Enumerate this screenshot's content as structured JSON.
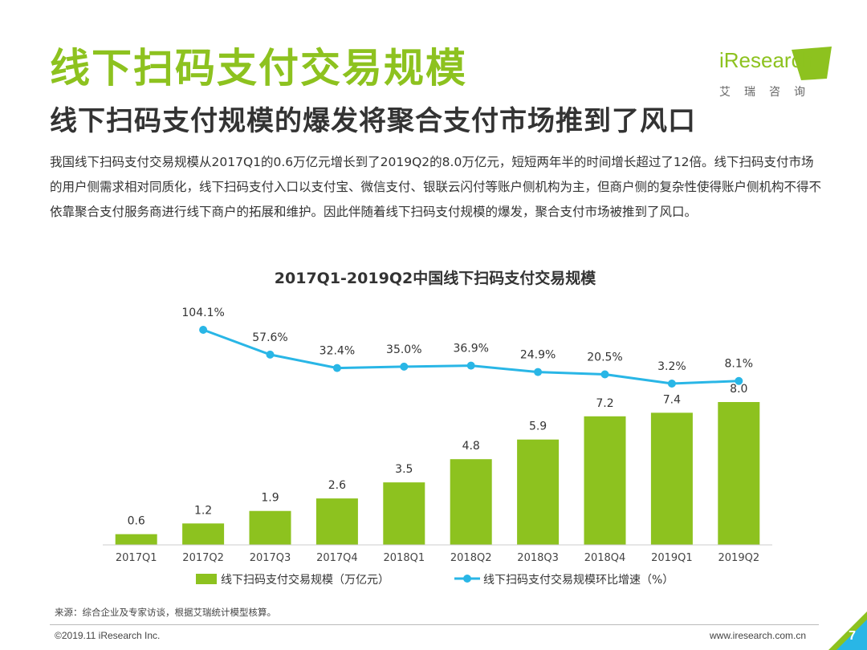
{
  "header": {
    "title": "线下扫码支付交易规模",
    "subtitle": "线下扫码支付规模的爆发将聚合支付市场推到了风口"
  },
  "logo": {
    "word": "iResearch",
    "cn": "艾瑞咨询"
  },
  "description": "我国线下扫码支付交易规模从2017Q1的0.6万亿元增长到了2019Q2的8.0万亿元，短短两年半的时间增长超过了12倍。线下扫码支付市场的用户侧需求相对同质化，线下扫码支付入口以支付宝、微信支付、银联云闪付等账户侧机构为主，但商户侧的复杂性使得账户侧机构不得不依靠聚合支付服务商进行线下商户的拓展和维护。因此伴随着线下扫码支付规模的爆发，聚合支付市场被推到了风口。",
  "colors": {
    "accent": "#8dc21f",
    "bar": "#8dc21f",
    "line": "#29b6e6"
  },
  "chart_data": {
    "type": "bar",
    "title": "2017Q1-2019Q2中国线下扫码支付交易规模",
    "categories": [
      "2017Q1",
      "2017Q2",
      "2017Q3",
      "2017Q4",
      "2018Q1",
      "2018Q2",
      "2018Q3",
      "2018Q4",
      "2019Q1",
      "2019Q2"
    ],
    "series": [
      {
        "name": "线下扫码支付交易规模（万亿元）",
        "type": "bar",
        "values": [
          0.6,
          1.2,
          1.9,
          2.6,
          3.5,
          4.8,
          5.9,
          7.2,
          7.4,
          8.0
        ],
        "labels": [
          "0.6",
          "1.2",
          "1.9",
          "2.6",
          "3.5",
          "4.8",
          "5.9",
          "7.2",
          "7.4",
          "8.0"
        ]
      },
      {
        "name": "线下扫码支付交易规模环比增速（%）",
        "type": "line",
        "values": [
          null,
          104.1,
          57.6,
          32.4,
          35.0,
          36.9,
          24.9,
          20.5,
          3.2,
          8.1
        ],
        "labels": [
          "",
          "104.1%",
          "57.6%",
          "32.4%",
          "35.0%",
          "36.9%",
          "24.9%",
          "20.5%",
          "3.2%",
          "8.1%"
        ]
      }
    ],
    "legend_position": "bottom",
    "grid": false
  },
  "footer": {
    "source": "来源：综合企业及专家访谈，根据艾瑞统计模型核算。",
    "copyright": "©2019.11 iResearch Inc.",
    "website": "www.iresearch.com.cn",
    "page_number": "7"
  }
}
